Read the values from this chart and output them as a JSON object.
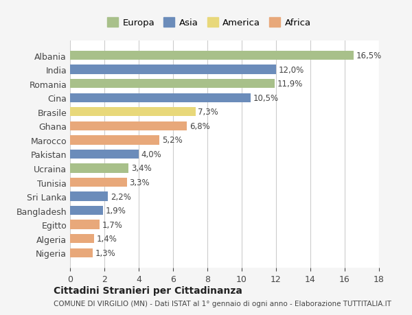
{
  "countries": [
    "Albania",
    "India",
    "Romania",
    "Cina",
    "Brasile",
    "Ghana",
    "Marocco",
    "Pakistan",
    "Ucraina",
    "Tunisia",
    "Sri Lanka",
    "Bangladesh",
    "Egitto",
    "Algeria",
    "Nigeria"
  ],
  "values": [
    16.5,
    12.0,
    11.9,
    10.5,
    7.3,
    6.8,
    5.2,
    4.0,
    3.4,
    3.3,
    2.2,
    1.9,
    1.7,
    1.4,
    1.3
  ],
  "labels": [
    "16,5%",
    "12,0%",
    "11,9%",
    "10,5%",
    "7,3%",
    "6,8%",
    "5,2%",
    "4,0%",
    "3,4%",
    "3,3%",
    "2,2%",
    "1,9%",
    "1,7%",
    "1,4%",
    "1,3%"
  ],
  "continents": [
    "Europa",
    "Asia",
    "Europa",
    "Asia",
    "America",
    "Africa",
    "Africa",
    "Asia",
    "Europa",
    "Africa",
    "Asia",
    "Asia",
    "Africa",
    "Africa",
    "Africa"
  ],
  "colors": {
    "Europa": "#a8c08a",
    "Asia": "#6b8cba",
    "America": "#e8d87a",
    "Africa": "#e8a87a"
  },
  "legend_order": [
    "Europa",
    "Asia",
    "America",
    "Africa"
  ],
  "title": "Cittadini Stranieri per Cittadinanza",
  "subtitle": "COMUNE DI VIRGILIO (MN) - Dati ISTAT al 1° gennaio di ogni anno - Elaborazione TUTTITALIA.IT",
  "xlim": [
    0,
    18
  ],
  "xticks": [
    0,
    2,
    4,
    6,
    8,
    10,
    12,
    14,
    16,
    18
  ],
  "background_color": "#f5f5f5",
  "bar_background": "#ffffff",
  "grid_color": "#cccccc"
}
